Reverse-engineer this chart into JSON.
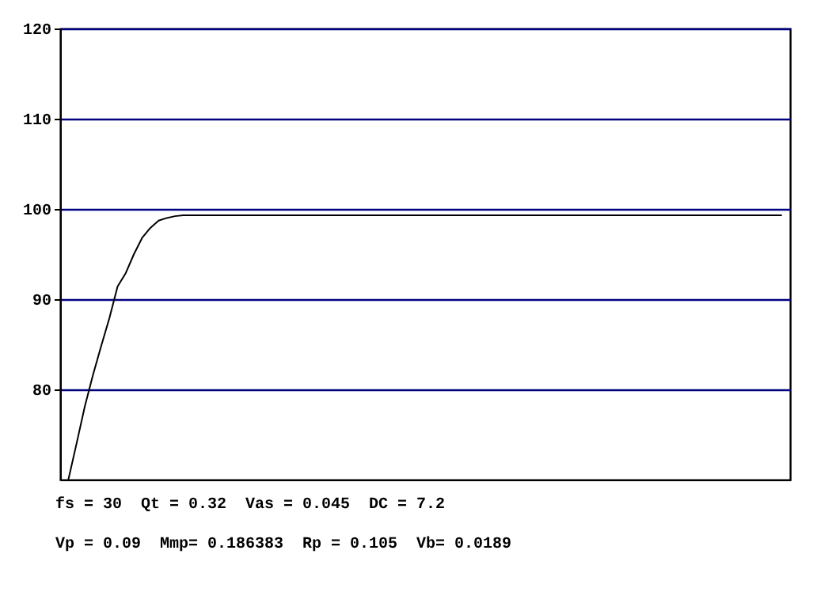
{
  "chart_data": {
    "type": "line",
    "categories": [
      null,
      null,
      null,
      null,
      null,
      null,
      null,
      null,
      null,
      null,
      null,
      null,
      null,
      null,
      null,
      null,
      null,
      null,
      null,
      null,
      null,
      null,
      null,
      null,
      null,
      null,
      null,
      null,
      null,
      null,
      null,
      null,
      null,
      null,
      null,
      null,
      null,
      null,
      null,
      null,
      null,
      null,
      null,
      null,
      null,
      null,
      null,
      null,
      null,
      null,
      null,
      null,
      null,
      null,
      null,
      null,
      null,
      null,
      null,
      null,
      null,
      null,
      null,
      null,
      null,
      null,
      null,
      null,
      null,
      null,
      null,
      null,
      null,
      null,
      null,
      null,
      null,
      null,
      null,
      null,
      null,
      null,
      null,
      null,
      null,
      null,
      null,
      null
    ],
    "series": [
      {
        "color": "#000000",
        "values": [
          70,
          74,
          78.1,
          81.6,
          84.8,
          87.9,
          91.4,
          92.9,
          95,
          96.8,
          97.9,
          98.7,
          99,
          99.2,
          99.3,
          99.3,
          99.3,
          99.3,
          99.3,
          99.3,
          99.3,
          99.3,
          99.3,
          99.3,
          99.3,
          99.3,
          99.3,
          99.3,
          99.3,
          99.3,
          99.3,
          99.3,
          99.3,
          99.3,
          99.3,
          99.3,
          99.3,
          99.3,
          99.3,
          99.3,
          99.3,
          99.3,
          99.3,
          99.3,
          99.3,
          99.3,
          99.3,
          99.3,
          99.3,
          99.3,
          99.3,
          99.3,
          99.3,
          99.3,
          99.3,
          99.3,
          99.3,
          99.3,
          99.3,
          99.3,
          99.3,
          99.3,
          99.3,
          99.3,
          99.3,
          99.3,
          99.3,
          99.3,
          99.3,
          99.3,
          99.3,
          99.3,
          99.3,
          99.3,
          99.3,
          99.3,
          99.3,
          99.3,
          99.3,
          99.3,
          99.3,
          99.3,
          99.3,
          99.3,
          99.3,
          99.3,
          99.3,
          99.3
        ]
      }
    ],
    "ylim": [
      70,
      120
    ],
    "yticks": [
      80,
      90,
      100,
      110,
      120
    ],
    "grid": "y",
    "tick_labels": "y",
    "annotations": [
      "fs = 30  Qt = 0.32  Vas = 0.045  DC = 7.2",
      "Vp = 0.09  Mmp= 0.186383  Rp = 0.105  Vb= 0.0189"
    ]
  }
}
